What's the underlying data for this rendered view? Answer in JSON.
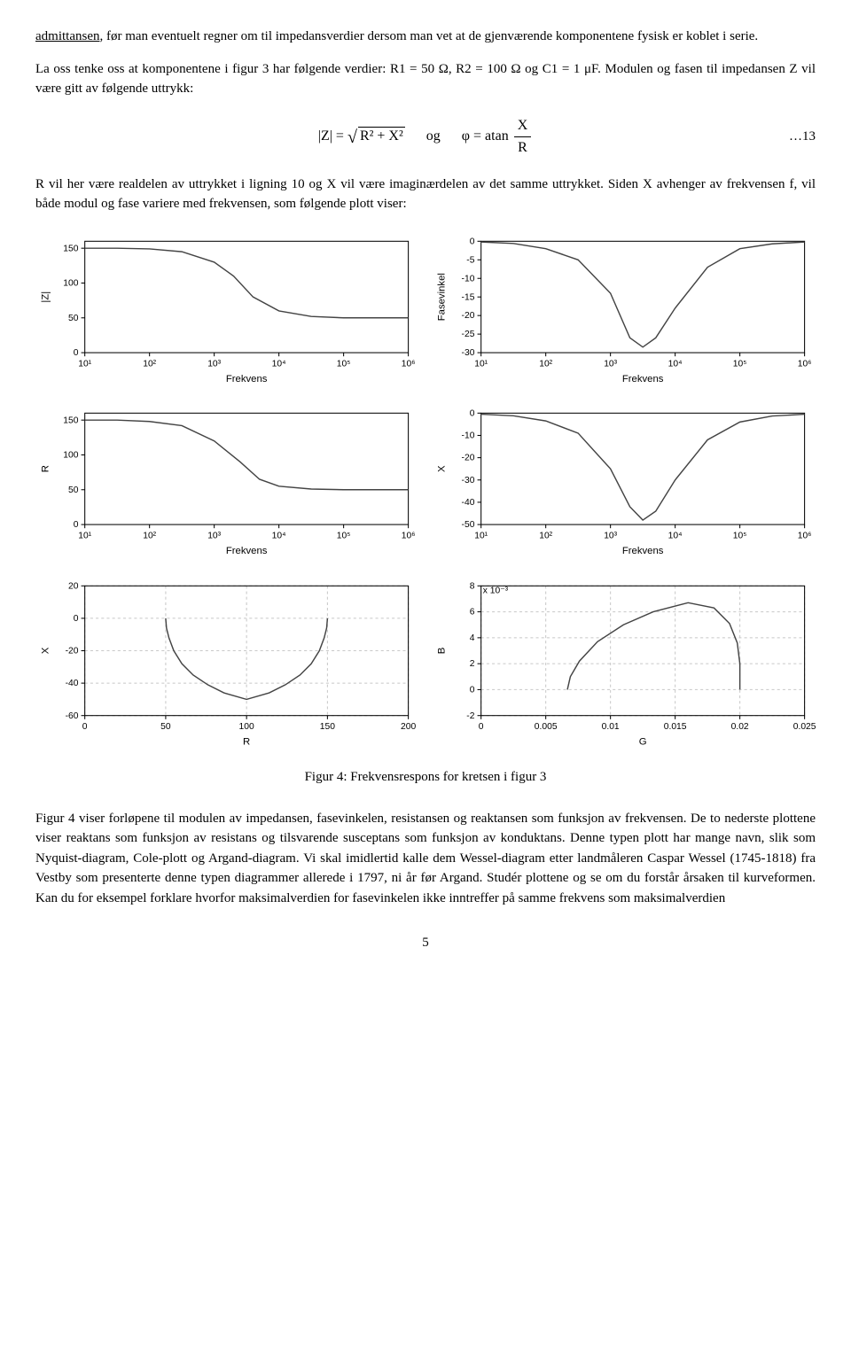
{
  "para1_lead_underlined": "admittansen",
  "para1_rest": ", før man eventuelt regner om til impedansverdier dersom man vet at de gjenværende komponentene fysisk er koblet i serie.",
  "para2": "La oss tenke oss at komponentene i figur 3 har følgende verdier: R1 = 50 Ω, R2 = 100 Ω og C1 = 1 μF. Modulen og fasen til impedansen Z vil være gitt av følgende uttrykk:",
  "eq13": {
    "lhs1": "|Z| =",
    "under_sqrt": "R² + X²",
    "join": "og",
    "lhs2": "φ = atan",
    "frac_top": "X",
    "frac_bot": "R",
    "num": "…13"
  },
  "para3": "R vil her være realdelen av uttrykket i ligning 10 og X vil være imaginærdelen av det samme uttrykket. Siden X avhenger av frekvensen f, vil både modul og fase variere med frekvensen, som følgende plott viser:",
  "caption": "Figur 4: Frekvensrespons for kretsen i figur 3",
  "para4": "Figur 4 viser forløpene til modulen av impedansen, fasevinkelen, resistansen og reaktansen som funksjon av frekvensen. De to nederste plottene viser reaktans som funksjon av resistans og tilsvarende susceptans som funksjon av konduktans. Denne typen plott har mange navn, slik som Nyquist-diagram, Cole-plott og Argand-diagram. Vi skal imidlertid kalle dem Wessel-diagram etter landmåleren Caspar Wessel (1745-1818) fra Vestby som presenterte denne typen diagrammer allerede i 1797, ni år før Argand. Studér plottene og se om du forstår årsaken til kurveformen. Kan du for eksempel forklare hvorfor maksimalverdien for fasevinkelen ikke inntreffer på samme frekvens som maksimalverdien",
  "pagenum": "5",
  "chart_colors": {
    "curve": "#555555",
    "axis": "#000000",
    "grid": "#c8c8c8",
    "frame": "#000000",
    "bg": "#ffffff"
  },
  "chart_Z": {
    "type": "line",
    "ylabel": "|Z|",
    "xlabel": "Frekvens",
    "xscale": "log",
    "xlim": [
      1,
      6
    ],
    "xticks": [
      1,
      2,
      3,
      4,
      5,
      6
    ],
    "xticklabels": [
      "10¹",
      "10²",
      "10³",
      "10⁴",
      "10⁵",
      "10⁶"
    ],
    "ylim": [
      0,
      160
    ],
    "yticks": [
      0,
      50,
      100,
      150
    ],
    "points": [
      [
        1,
        150
      ],
      [
        1.5,
        150
      ],
      [
        2,
        149
      ],
      [
        2.5,
        145
      ],
      [
        3,
        130
      ],
      [
        3.3,
        110
      ],
      [
        3.6,
        80
      ],
      [
        4,
        60
      ],
      [
        4.5,
        52
      ],
      [
        5,
        50
      ],
      [
        6,
        50
      ]
    ]
  },
  "chart_phase": {
    "type": "line",
    "ylabel": "Fasevinkel",
    "xlabel": "Frekvens",
    "xscale": "log",
    "xlim": [
      1,
      6
    ],
    "xticks": [
      1,
      2,
      3,
      4,
      5,
      6
    ],
    "xticklabels": [
      "10¹",
      "10²",
      "10³",
      "10⁴",
      "10⁵",
      "10⁶"
    ],
    "ylim": [
      -30,
      0
    ],
    "yticks": [
      -30,
      -25,
      -20,
      -15,
      -10,
      -5,
      0
    ],
    "points": [
      [
        1,
        -0.2
      ],
      [
        1.5,
        -0.6
      ],
      [
        2,
        -2
      ],
      [
        2.5,
        -5
      ],
      [
        3,
        -14
      ],
      [
        3.3,
        -26
      ],
      [
        3.5,
        -28.5
      ],
      [
        3.7,
        -26
      ],
      [
        4,
        -18
      ],
      [
        4.5,
        -7
      ],
      [
        5,
        -2
      ],
      [
        5.5,
        -0.7
      ],
      [
        6,
        -0.2
      ]
    ]
  },
  "chart_R": {
    "type": "line",
    "ylabel": "R",
    "xlabel": "Frekvens",
    "xscale": "log",
    "xlim": [
      1,
      6
    ],
    "xticks": [
      1,
      2,
      3,
      4,
      5,
      6
    ],
    "xticklabels": [
      "10¹",
      "10²",
      "10³",
      "10⁴",
      "10⁵",
      "10⁶"
    ],
    "ylim": [
      0,
      160
    ],
    "yticks": [
      0,
      50,
      100,
      150
    ],
    "points": [
      [
        1,
        150
      ],
      [
        1.5,
        150
      ],
      [
        2,
        148
      ],
      [
        2.5,
        142
      ],
      [
        3,
        120
      ],
      [
        3.4,
        90
      ],
      [
        3.7,
        65
      ],
      [
        4,
        55
      ],
      [
        4.5,
        51
      ],
      [
        5,
        50
      ],
      [
        6,
        50
      ]
    ]
  },
  "chart_Xf": {
    "type": "line",
    "ylabel": "X",
    "xlabel": "Frekvens",
    "xscale": "log",
    "xlim": [
      1,
      6
    ],
    "xticks": [
      1,
      2,
      3,
      4,
      5,
      6
    ],
    "xticklabels": [
      "10¹",
      "10²",
      "10³",
      "10⁴",
      "10⁵",
      "10⁶"
    ],
    "ylim": [
      -50,
      0
    ],
    "yticks": [
      -50,
      -40,
      -30,
      -20,
      -10,
      0
    ],
    "points": [
      [
        1,
        -0.5
      ],
      [
        1.5,
        -1.2
      ],
      [
        2,
        -3.5
      ],
      [
        2.5,
        -9
      ],
      [
        3,
        -25
      ],
      [
        3.3,
        -42
      ],
      [
        3.5,
        -48
      ],
      [
        3.7,
        -44
      ],
      [
        4,
        -30
      ],
      [
        4.5,
        -12
      ],
      [
        5,
        -4
      ],
      [
        5.5,
        -1.3
      ],
      [
        6,
        -0.5
      ]
    ]
  },
  "chart_XR": {
    "type": "line",
    "ylabel": "X",
    "xlabel": "R",
    "xscale": "linear",
    "xlim": [
      0,
      200
    ],
    "xticks": [
      0,
      50,
      100,
      150,
      200
    ],
    "ylim": [
      -60,
      20
    ],
    "yticks": [
      -60,
      -40,
      -20,
      0,
      20
    ],
    "grid": true,
    "points": [
      [
        150,
        0
      ],
      [
        149.5,
        -6
      ],
      [
        148,
        -12
      ],
      [
        145,
        -20
      ],
      [
        140,
        -28
      ],
      [
        133,
        -35
      ],
      [
        124,
        -41
      ],
      [
        114,
        -46
      ],
      [
        100,
        -50
      ],
      [
        86,
        -46
      ],
      [
        76,
        -41
      ],
      [
        67,
        -35
      ],
      [
        60,
        -28
      ],
      [
        55,
        -20
      ],
      [
        52,
        -12
      ],
      [
        50.5,
        -6
      ],
      [
        50,
        0
      ]
    ]
  },
  "chart_BG": {
    "type": "line",
    "ylabel": "B",
    "xlabel": "G",
    "xscale": "linear",
    "xlim": [
      0,
      0.025
    ],
    "xticks": [
      0,
      0.005,
      0.01,
      0.015,
      0.02,
      0.025
    ],
    "ylim": [
      -2,
      8
    ],
    "yticks": [
      -2,
      0,
      2,
      4,
      6,
      8
    ],
    "yscale_note": "x 10⁻³",
    "grid": true,
    "points": [
      [
        0.00667,
        0
      ],
      [
        0.0069,
        1.0
      ],
      [
        0.0076,
        2.2
      ],
      [
        0.009,
        3.7
      ],
      [
        0.011,
        5.0
      ],
      [
        0.0133,
        6.0
      ],
      [
        0.016,
        6.7
      ],
      [
        0.018,
        6.3
      ],
      [
        0.0192,
        5.1
      ],
      [
        0.0198,
        3.6
      ],
      [
        0.02,
        2.0
      ],
      [
        0.02,
        0.6
      ],
      [
        0.02,
        0
      ]
    ]
  }
}
